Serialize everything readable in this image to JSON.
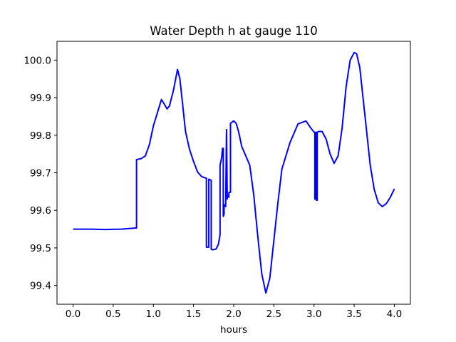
{
  "chart_data": {
    "type": "line",
    "title": "Water Depth h at gauge 110",
    "xlabel": "hours",
    "ylabel": "",
    "xlim": [
      -0.2,
      4.2
    ],
    "ylim": [
      99.35,
      100.05
    ],
    "xticks": [
      0.0,
      0.5,
      1.0,
      1.5,
      2.0,
      2.5,
      3.0,
      3.5,
      4.0
    ],
    "xtick_labels": [
      "0.0",
      "0.5",
      "1.0",
      "1.5",
      "2.0",
      "2.5",
      "3.0",
      "3.5",
      "4.0"
    ],
    "yticks": [
      99.4,
      99.5,
      99.6,
      99.7,
      99.8,
      99.9,
      100.0
    ],
    "ytick_labels": [
      "99.4",
      "99.5",
      "99.6",
      "99.7",
      "99.8",
      "99.9",
      "100.0"
    ],
    "grid": false,
    "series": [
      {
        "color": "#0000ff",
        "x": [
          0.0,
          0.2,
          0.4,
          0.6,
          0.78,
          0.79,
          0.79,
          0.85,
          0.9,
          0.95,
          1.0,
          1.05,
          1.1,
          1.13,
          1.17,
          1.2,
          1.25,
          1.3,
          1.33,
          1.37,
          1.4,
          1.45,
          1.5,
          1.55,
          1.6,
          1.65,
          1.66,
          1.66,
          1.69,
          1.69,
          1.72,
          1.72,
          1.74,
          1.78,
          1.81,
          1.83,
          1.83,
          1.85,
          1.86,
          1.87,
          1.87,
          1.88,
          1.88,
          1.9,
          1.91,
          1.91,
          1.92,
          1.92,
          1.94,
          1.94,
          1.96,
          1.96,
          2.0,
          2.03,
          2.06,
          2.1,
          2.15,
          2.2,
          2.25,
          2.3,
          2.35,
          2.4,
          2.45,
          2.5,
          2.55,
          2.6,
          2.7,
          2.8,
          2.9,
          2.95,
          3.0,
          3.01,
          3.01,
          3.02,
          3.02,
          3.03,
          3.03,
          3.04,
          3.04,
          3.06,
          3.1,
          3.15,
          3.2,
          3.25,
          3.3,
          3.35,
          3.4,
          3.45,
          3.5,
          3.53,
          3.57,
          3.6,
          3.65,
          3.7,
          3.75,
          3.8,
          3.85,
          3.9,
          3.95,
          4.0
        ],
        "y": [
          99.55,
          99.55,
          99.549,
          99.55,
          99.553,
          99.553,
          99.735,
          99.738,
          99.745,
          99.775,
          99.825,
          99.86,
          99.895,
          99.885,
          99.87,
          99.878,
          99.92,
          99.975,
          99.95,
          99.87,
          99.81,
          99.762,
          99.73,
          99.702,
          99.69,
          99.686,
          99.686,
          99.502,
          99.502,
          99.683,
          99.68,
          99.496,
          99.495,
          99.497,
          99.51,
          99.535,
          99.72,
          99.74,
          99.765,
          99.765,
          99.584,
          99.59,
          99.615,
          99.61,
          99.81,
          99.815,
          99.63,
          99.64,
          99.635,
          99.648,
          99.648,
          99.832,
          99.838,
          99.832,
          99.81,
          99.77,
          99.745,
          99.72,
          99.64,
          99.53,
          99.43,
          99.38,
          99.42,
          99.52,
          99.62,
          99.71,
          99.78,
          99.83,
          99.838,
          99.822,
          99.808,
          99.808,
          99.63,
          99.63,
          99.808,
          99.808,
          99.627,
          99.627,
          99.808,
          99.81,
          99.81,
          99.79,
          99.75,
          99.725,
          99.745,
          99.82,
          99.93,
          100.0,
          100.02,
          100.017,
          99.98,
          99.92,
          99.82,
          99.72,
          99.655,
          99.62,
          99.61,
          99.618,
          99.635,
          99.657
        ]
      }
    ]
  }
}
